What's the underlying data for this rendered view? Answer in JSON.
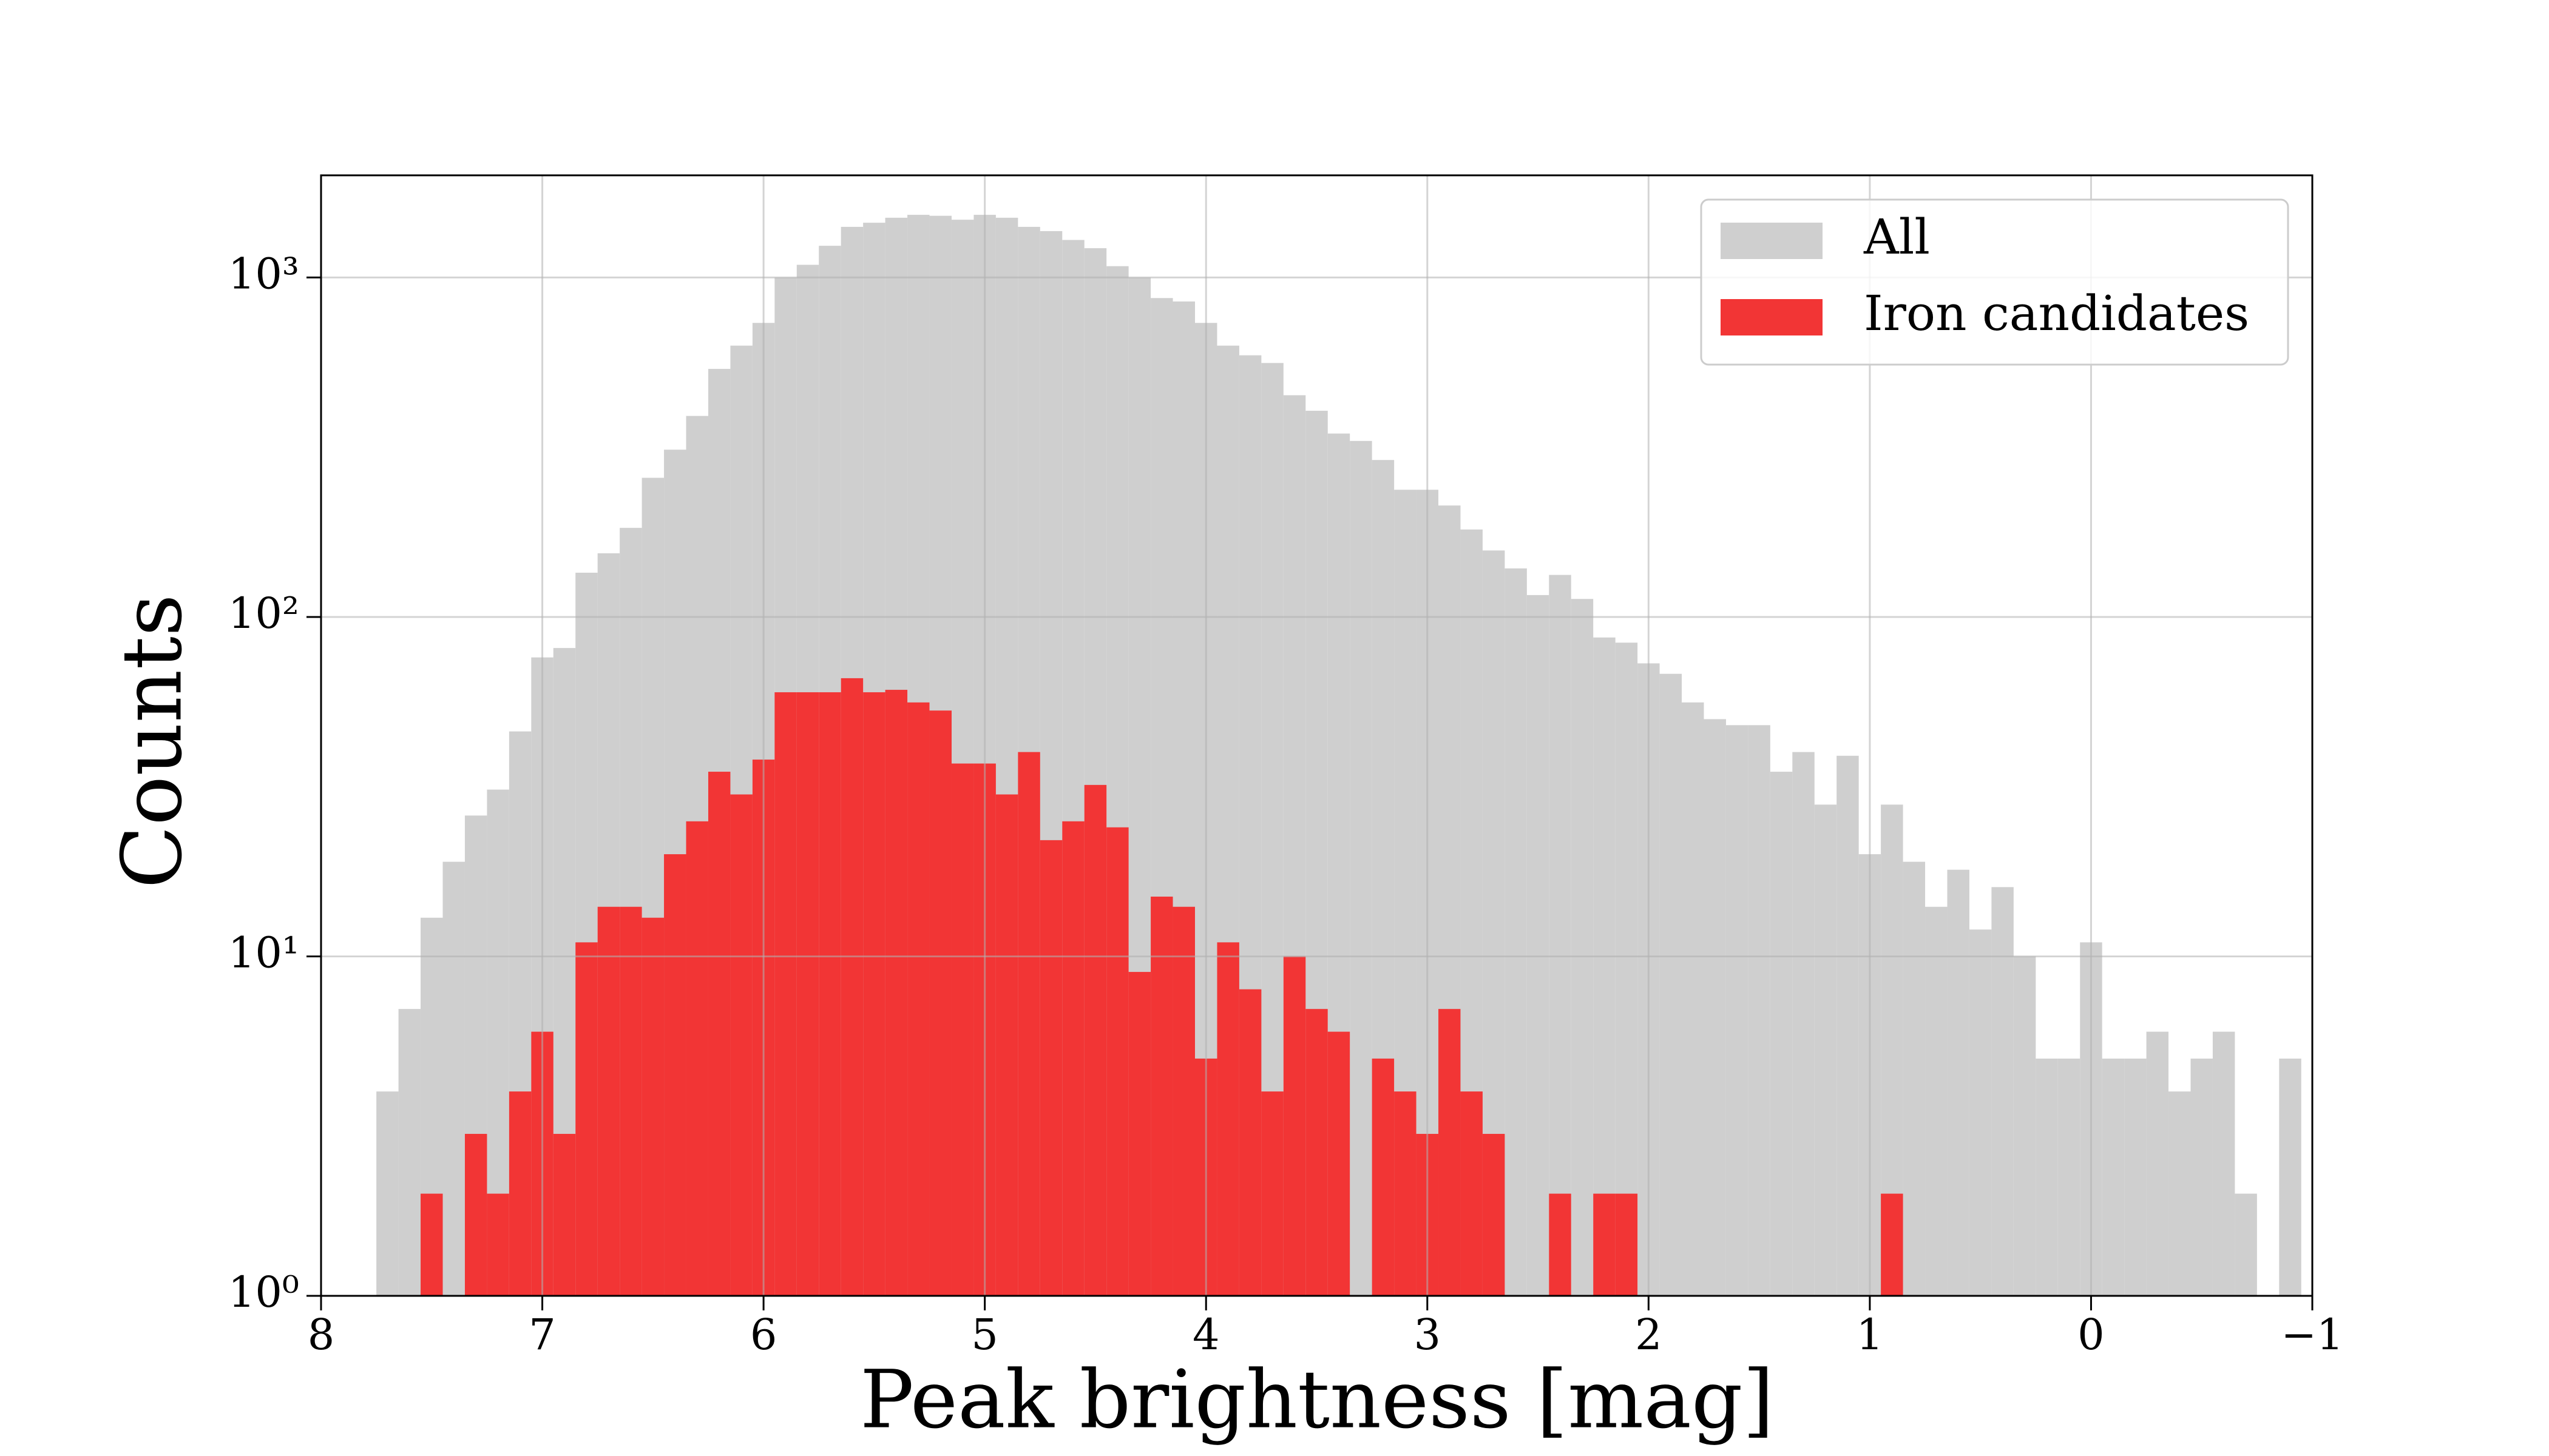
{
  "chart_data": {
    "type": "histogram",
    "xlabel": "Peak brightness [mag]",
    "ylabel": "Counts",
    "bins": [
      7.75,
      7.65,
      7.55,
      7.45,
      7.35,
      7.25,
      7.15,
      7.05,
      6.95,
      6.85,
      6.75,
      6.65,
      6.55,
      6.45,
      6.35,
      6.25,
      6.15,
      6.05,
      5.95,
      5.85,
      5.75,
      5.65,
      5.55,
      5.45,
      5.35,
      5.25,
      5.15,
      5.05,
      4.95,
      4.85,
      4.75,
      4.65,
      4.55,
      4.45,
      4.35,
      4.25,
      4.15,
      4.05,
      3.95,
      3.85,
      3.75,
      3.65,
      3.55,
      3.45,
      3.35,
      3.25,
      3.15,
      3.05,
      2.95,
      2.85,
      2.75,
      2.65,
      2.55,
      2.45,
      2.35,
      2.25,
      2.15,
      2.05,
      1.95,
      1.85,
      1.75,
      1.65,
      1.55,
      1.45,
      1.35,
      1.25,
      1.15,
      1.05,
      0.95,
      0.85,
      0.75,
      0.65,
      0.55,
      0.45,
      0.35,
      0.25,
      0.15,
      0.05,
      -0.05,
      -0.15,
      -0.25,
      -0.35,
      -0.45,
      -0.55,
      -0.65,
      -0.75,
      -0.85,
      -0.95
    ],
    "series": [
      {
        "name": "All",
        "color": "#cfcfcf",
        "values": [
          4,
          7,
          13,
          19,
          26,
          31,
          46,
          76,
          81,
          135,
          154,
          183,
          257,
          311,
          391,
          538,
          630,
          735,
          1000,
          1090,
          1240,
          1410,
          1450,
          1500,
          1530,
          1520,
          1480,
          1530,
          1500,
          1410,
          1370,
          1290,
          1220,
          1080,
          1000,
          870,
          850,
          735,
          630,
          590,
          560,
          450,
          405,
          347,
          330,
          290,
          237,
          237,
          213,
          181,
          157,
          139,
          116,
          133,
          113,
          87,
          84,
          73,
          68,
          56,
          50,
          48,
          48,
          35,
          40,
          28,
          39,
          20,
          28,
          19,
          14,
          18,
          12,
          16,
          10,
          5,
          5,
          11,
          5,
          5,
          6,
          4,
          5,
          6,
          2,
          0,
          5
        ]
      },
      {
        "name": "Iron candidates",
        "color": "#f23535",
        "values": [
          0,
          0,
          2,
          0,
          3,
          2,
          4,
          6,
          3,
          11,
          14,
          14,
          13,
          20,
          25,
          35,
          30,
          38,
          60,
          60,
          60,
          66,
          60,
          61,
          56,
          53,
          37,
          37,
          30,
          40,
          22,
          25,
          32,
          24,
          9,
          15,
          14,
          5,
          11,
          8,
          4,
          10,
          7,
          6,
          0,
          5,
          4,
          3,
          7,
          4,
          3,
          0,
          0,
          2,
          0,
          2,
          2,
          0,
          0,
          0,
          0,
          0,
          0,
          0,
          0,
          0,
          0,
          0,
          2,
          0,
          0,
          0,
          0,
          0,
          0,
          0,
          0,
          0,
          0,
          0,
          0,
          0,
          0,
          0,
          0,
          0,
          0
        ]
      }
    ],
    "xlim": [
      8,
      -1
    ],
    "xticks": [
      8,
      7,
      6,
      5,
      4,
      3,
      2,
      1,
      0,
      {
        "value": -1,
        "label": "−1"
      }
    ],
    "ylim": [
      1,
      2000
    ],
    "yscale": "log",
    "yticks": [
      {
        "value": 1,
        "label": "10⁰"
      },
      {
        "value": 10,
        "label": "10¹"
      },
      {
        "value": 100,
        "label": "10²"
      },
      {
        "value": 1000,
        "label": "10³"
      }
    ],
    "grid": true,
    "legend": "upper right"
  }
}
